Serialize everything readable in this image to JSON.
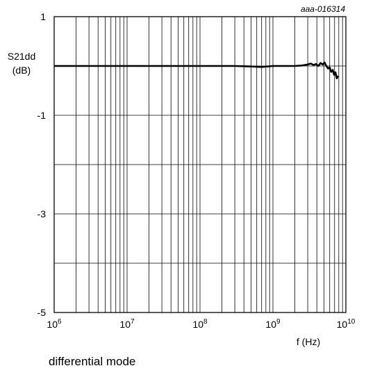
{
  "figure_id": "aaa-016314",
  "caption": "differential mode",
  "chart_data": {
    "type": "line",
    "ylabel_line1": "S21dd",
    "ylabel_line2": "(dB)",
    "xlabel": "f (Hz)",
    "xscale": "log",
    "xlim": [
      1000000,
      10000000000
    ],
    "ylim": [
      -5,
      1
    ],
    "y_ticks": [
      1,
      -1,
      -3,
      -5
    ],
    "y_gridlines": [
      1,
      0,
      -1,
      -2,
      -3,
      -4,
      -5
    ],
    "x_ticks": [
      {
        "base": "10",
        "exp": "6"
      },
      {
        "base": "10",
        "exp": "7"
      },
      {
        "base": "10",
        "exp": "8"
      },
      {
        "base": "10",
        "exp": "9"
      },
      {
        "base": "10",
        "exp": "10"
      }
    ],
    "grid": true,
    "line_color": "#000000",
    "series": [
      {
        "x": [
          1000000,
          2000000,
          5000000,
          10000000,
          30000000,
          100000000,
          300000000,
          500000000,
          700000000,
          1000000000,
          1500000000,
          2000000000,
          2500000000,
          3000000000,
          3300000000,
          3600000000,
          3900000000,
          4200000000,
          4500000000,
          4800000000,
          5100000000,
          5400000000,
          5700000000,
          6000000000,
          6300000000,
          6600000000,
          6900000000,
          7200000000,
          7500000000,
          7800000000
        ],
        "y": [
          0.0,
          0.0,
          0.0,
          0.0,
          0.0,
          0.0,
          0.0,
          -0.01,
          -0.02,
          0.0,
          0.0,
          0.0,
          0.01,
          0.03,
          0.05,
          0.02,
          0.04,
          0.0,
          0.06,
          0.03,
          0.07,
          0.0,
          -0.05,
          -0.03,
          -0.12,
          -0.08,
          -0.18,
          -0.13,
          -0.25,
          -0.2
        ]
      }
    ]
  }
}
